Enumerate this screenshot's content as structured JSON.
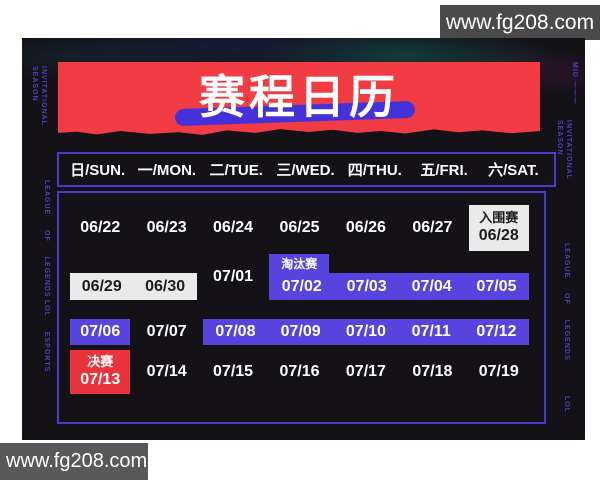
{
  "watermarks": {
    "top_right": "www.fg208.com",
    "bottom_left": "www.fg208.com"
  },
  "banner": {
    "title": "赛程日历"
  },
  "side_texts": {
    "left_season": "SEASON INVITATIONAL",
    "left_league": "LEAGUE OF LEGENDS",
    "left_lol": "LOL ESPORTS",
    "right_mid": "MID ———",
    "right_season": "SEASON INVITATIONAL",
    "right_league": "LEAGUE OF LEGENDS",
    "right_lol": "LOL"
  },
  "calendar": {
    "day_headers": [
      "日/SUN.",
      "一/MON.",
      "二/TUE.",
      "三/WED.",
      "四/THU.",
      "五/FRI.",
      "六/SAT."
    ],
    "stage_labels": {
      "play_in": "入围赛",
      "knockout": "淘汰赛",
      "finals": "决赛"
    },
    "rows": [
      [
        "06/22",
        "06/23",
        "06/24",
        "06/25",
        "06/26",
        "06/27",
        "06/28"
      ],
      [
        "06/29",
        "06/30",
        "07/01",
        "07/02",
        "07/03",
        "07/04",
        "07/05"
      ],
      [
        "07/06",
        "07/07",
        "07/08",
        "07/09",
        "07/10",
        "07/11",
        "07/12"
      ],
      [
        "07/13",
        "07/14",
        "07/15",
        "07/16",
        "07/17",
        "07/18",
        "07/19"
      ]
    ],
    "highlight_notes": {
      "white_box_dates": [
        "06/28",
        "06/29",
        "06/30"
      ],
      "purple_box_dates": [
        "07/02",
        "07/03",
        "07/04",
        "07/05",
        "07/06",
        "07/08",
        "07/09",
        "07/10",
        "07/11",
        "07/12"
      ],
      "red_box_date": "07/13"
    }
  },
  "colors": {
    "panel_bg": "#141217",
    "banner_red": "#f23c43",
    "finals_red": "#e9343c",
    "highlight_purple": "#5743de",
    "border_purple": "#4a3bd0",
    "underline_purple": "#4531da",
    "white_box": "#eaeaea",
    "watermark_gray": "#4a4a4a"
  }
}
